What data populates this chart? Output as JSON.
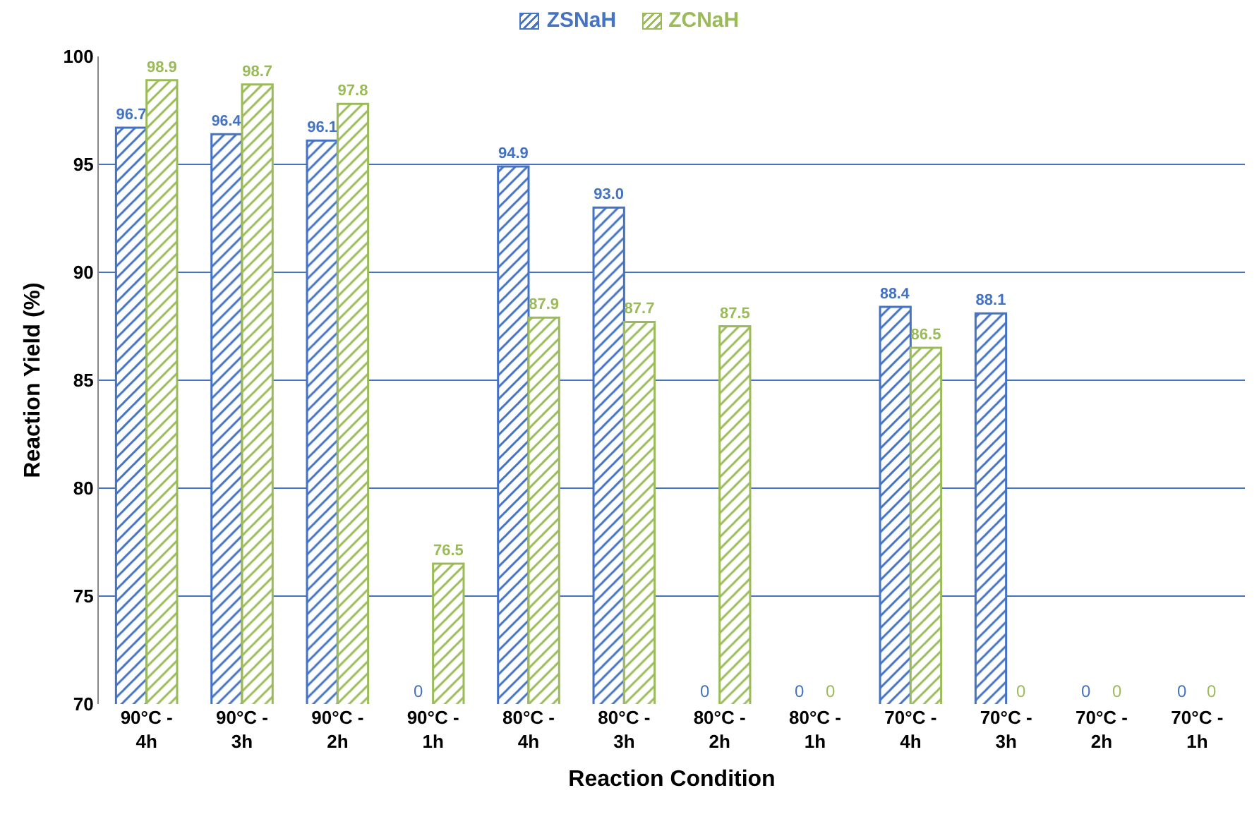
{
  "chart_data": {
    "type": "bar",
    "xlabel": "Reaction Condition",
    "ylabel": "Reaction Yield (%)",
    "categories": [
      "90°C - 4h",
      "90°C - 3h",
      "90°C - 2h",
      "90°C - 1h",
      "80°C - 4h",
      "80°C - 3h",
      "80°C - 2h",
      "80°C - 1h",
      "70°C - 4h",
      "70°C - 3h",
      "70°C - 2h",
      "70°C - 1h"
    ],
    "series": [
      {
        "name": "ZSNaH",
        "color": "#4472c4",
        "values": [
          96.7,
          96.4,
          96.1,
          null,
          94.9,
          93.0,
          null,
          null,
          88.4,
          88.1,
          null,
          null
        ],
        "value_labels": [
          "96.7",
          "96.4",
          "96.1",
          "0",
          "94.9",
          "93.0",
          "0",
          "0",
          "88.4",
          "88.1",
          "0",
          "0"
        ]
      },
      {
        "name": "ZCNaH",
        "color": "#9bbb59",
        "values": [
          98.9,
          98.7,
          97.8,
          76.5,
          87.9,
          87.7,
          87.5,
          null,
          86.5,
          null,
          null,
          null
        ],
        "value_labels": [
          "98.9",
          "98.7",
          "97.8",
          "76.5",
          "87.9",
          "87.7",
          "87.5",
          "0",
          "86.5",
          "0",
          "0",
          "0"
        ]
      }
    ],
    "ylim": [
      70,
      100
    ],
    "yticks": [
      70,
      75,
      80,
      85,
      90,
      95,
      100
    ],
    "grid": "y",
    "legend": "top"
  }
}
